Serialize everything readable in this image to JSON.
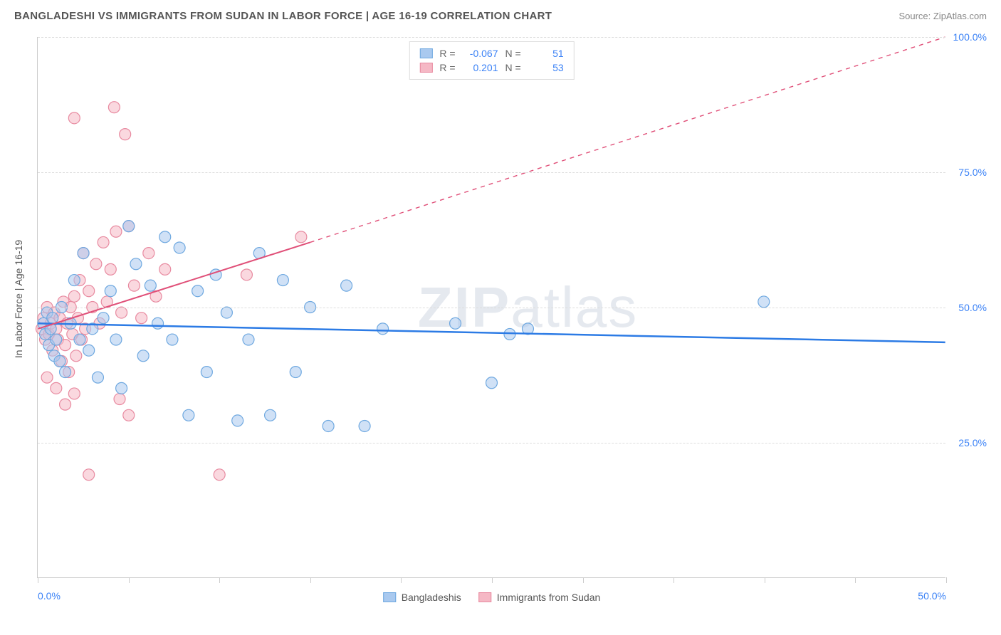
{
  "header": {
    "title": "BANGLADESHI VS IMMIGRANTS FROM SUDAN IN LABOR FORCE | AGE 16-19 CORRELATION CHART",
    "source": "Source: ZipAtlas.com"
  },
  "chart": {
    "type": "scatter",
    "y_axis_label": "In Labor Force | Age 16-19",
    "x_range": [
      0,
      50
    ],
    "y_range": [
      0,
      100
    ],
    "x_ticks": [
      0,
      5,
      10,
      15,
      20,
      25,
      30,
      35,
      40,
      45,
      50
    ],
    "x_tick_labels": {
      "0": "0.0%",
      "50": "50.0%"
    },
    "y_ticks": [
      25,
      50,
      75,
      100
    ],
    "y_tick_labels": {
      "25": "25.0%",
      "50": "50.0%",
      "75": "75.0%",
      "100": "100.0%"
    },
    "grid_color": "#dddddd",
    "axis_color": "#cccccc",
    "background_color": "#ffffff",
    "marker_radius": 8,
    "marker_opacity": 0.55,
    "series": [
      {
        "name": "Bangladeshis",
        "color_fill": "#a9c9ef",
        "color_stroke": "#6ea8e0",
        "r": "-0.067",
        "n": "51",
        "trend": {
          "solid": {
            "x1": 0,
            "y1": 47,
            "x2": 50,
            "y2": 43.5
          },
          "color": "#2c7be5",
          "width": 2.5
        },
        "points": [
          [
            0.3,
            47
          ],
          [
            0.4,
            45
          ],
          [
            0.5,
            49
          ],
          [
            0.6,
            43
          ],
          [
            0.7,
            46
          ],
          [
            0.8,
            48
          ],
          [
            0.9,
            41
          ],
          [
            1.0,
            44
          ],
          [
            1.2,
            40
          ],
          [
            1.3,
            50
          ],
          [
            1.5,
            38
          ],
          [
            1.8,
            47
          ],
          [
            2.0,
            55
          ],
          [
            2.3,
            44
          ],
          [
            2.5,
            60
          ],
          [
            2.8,
            42
          ],
          [
            3.0,
            46
          ],
          [
            3.3,
            37
          ],
          [
            3.6,
            48
          ],
          [
            4.0,
            53
          ],
          [
            4.3,
            44
          ],
          [
            4.6,
            35
          ],
          [
            5.0,
            65
          ],
          [
            5.4,
            58
          ],
          [
            5.8,
            41
          ],
          [
            6.2,
            54
          ],
          [
            6.6,
            47
          ],
          [
            7.0,
            63
          ],
          [
            7.4,
            44
          ],
          [
            7.8,
            61
          ],
          [
            8.3,
            30
          ],
          [
            8.8,
            53
          ],
          [
            9.3,
            38
          ],
          [
            9.8,
            56
          ],
          [
            10.4,
            49
          ],
          [
            11.0,
            29
          ],
          [
            11.6,
            44
          ],
          [
            12.2,
            60
          ],
          [
            12.8,
            30
          ],
          [
            13.5,
            55
          ],
          [
            14.2,
            38
          ],
          [
            15.0,
            50
          ],
          [
            16.0,
            28
          ],
          [
            17.0,
            54
          ],
          [
            18.0,
            28
          ],
          [
            19.0,
            46
          ],
          [
            23.0,
            47
          ],
          [
            25.0,
            36
          ],
          [
            26.0,
            45
          ],
          [
            27.0,
            46
          ],
          [
            40.0,
            51
          ]
        ]
      },
      {
        "name": "Immigrants from Sudan",
        "color_fill": "#f5b8c5",
        "color_stroke": "#e88aa0",
        "r": "0.201",
        "n": "53",
        "trend": {
          "solid": {
            "x1": 0,
            "y1": 46,
            "x2": 15,
            "y2": 62
          },
          "dashed": {
            "x1": 15,
            "y1": 62,
            "x2": 50,
            "y2": 100
          },
          "color": "#e04f78",
          "width": 2
        },
        "points": [
          [
            0.2,
            46
          ],
          [
            0.3,
            48
          ],
          [
            0.4,
            44
          ],
          [
            0.5,
            50
          ],
          [
            0.6,
            45
          ],
          [
            0.7,
            47
          ],
          [
            0.8,
            42
          ],
          [
            0.9,
            49
          ],
          [
            1.0,
            46
          ],
          [
            1.1,
            44
          ],
          [
            1.2,
            48
          ],
          [
            1.3,
            40
          ],
          [
            1.4,
            51
          ],
          [
            1.5,
            43
          ],
          [
            1.6,
            47
          ],
          [
            1.7,
            38
          ],
          [
            1.8,
            50
          ],
          [
            1.9,
            45
          ],
          [
            2.0,
            52
          ],
          [
            2.1,
            41
          ],
          [
            2.2,
            48
          ],
          [
            2.3,
            55
          ],
          [
            2.4,
            44
          ],
          [
            2.5,
            60
          ],
          [
            2.6,
            46
          ],
          [
            2.8,
            53
          ],
          [
            3.0,
            50
          ],
          [
            3.2,
            58
          ],
          [
            3.4,
            47
          ],
          [
            3.6,
            62
          ],
          [
            3.8,
            51
          ],
          [
            4.0,
            57
          ],
          [
            4.3,
            64
          ],
          [
            4.6,
            49
          ],
          [
            5.0,
            65
          ],
          [
            5.3,
            54
          ],
          [
            5.7,
            48
          ],
          [
            6.1,
            60
          ],
          [
            6.5,
            52
          ],
          [
            7.0,
            57
          ],
          [
            1.0,
            35
          ],
          [
            1.5,
            32
          ],
          [
            2.0,
            34
          ],
          [
            0.5,
            37
          ],
          [
            2.8,
            19
          ],
          [
            5.0,
            30
          ],
          [
            4.5,
            33
          ],
          [
            2.0,
            85
          ],
          [
            4.2,
            87
          ],
          [
            4.8,
            82
          ],
          [
            10.0,
            19
          ],
          [
            11.5,
            56
          ],
          [
            14.5,
            63
          ]
        ]
      }
    ],
    "watermark": {
      "text_bold": "ZIP",
      "text_light": "atlas",
      "color": "#e5e9ef"
    },
    "legend_bottom": [
      {
        "label": "Bangladeshis",
        "fill": "#a9c9ef",
        "stroke": "#6ea8e0"
      },
      {
        "label": "Immigrants from Sudan",
        "fill": "#f5b8c5",
        "stroke": "#e88aa0"
      }
    ]
  }
}
